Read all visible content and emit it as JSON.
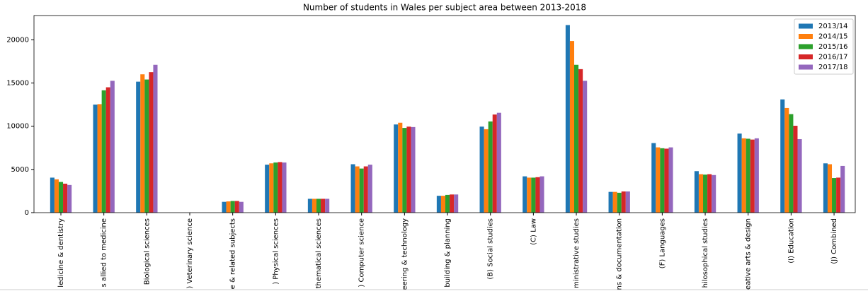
{
  "chart_data": {
    "type": "bar",
    "title": "Number of students in Wales per subject area between 2013-2018",
    "categories": [
      "ledicine & dentistry",
      "s allied to medicine",
      "Biological sciences",
      ") Veterinary science",
      "e & related subjects",
      ") Physical sciences",
      "thematical sciences",
      ") Computer science",
      "eering & technology",
      "building & planning",
      "(B) Social studies",
      "(C) Law",
      "ministrative studies",
      "ns & documentation",
      "(F) Languages",
      "hilosophical studies",
      "eative arts & design",
      "(I) Education",
      "(J) Combined"
    ],
    "series": [
      {
        "name": "2013/14",
        "color": "#1f77b4",
        "values": [
          4050,
          12500,
          15150,
          0,
          1250,
          5550,
          1600,
          5600,
          10200,
          1950,
          9950,
          4200,
          21700,
          2400,
          8050,
          4800,
          9150,
          13100,
          5700
        ]
      },
      {
        "name": "2014/15",
        "color": "#ff7f0e",
        "values": [
          3850,
          12550,
          16000,
          0,
          1300,
          5700,
          1600,
          5350,
          10400,
          1950,
          9650,
          4050,
          19850,
          2400,
          7550,
          4450,
          8600,
          12100,
          5600
        ]
      },
      {
        "name": "2015/16",
        "color": "#2ca02c",
        "values": [
          3550,
          14150,
          15400,
          0,
          1350,
          5800,
          1600,
          5100,
          9800,
          2050,
          10550,
          4050,
          17100,
          2300,
          7450,
          4400,
          8550,
          11400,
          4000
        ]
      },
      {
        "name": "2016/17",
        "color": "#d62728",
        "values": [
          3350,
          14500,
          16250,
          0,
          1350,
          5850,
          1600,
          5350,
          9950,
          2100,
          11350,
          4100,
          16600,
          2450,
          7400,
          4450,
          8450,
          10050,
          4050
        ]
      },
      {
        "name": "2017/18",
        "color": "#9467bd",
        "values": [
          3200,
          15250,
          17100,
          0,
          1250,
          5800,
          1600,
          5550,
          9900,
          2100,
          11550,
          4200,
          15250,
          2450,
          7550,
          4350,
          8600,
          8500,
          5400
        ]
      }
    ],
    "ylim": [
      0,
      22800
    ],
    "yticks": [
      0,
      5000,
      10000,
      15000,
      20000
    ],
    "grid": false,
    "legend": "upper-right"
  }
}
